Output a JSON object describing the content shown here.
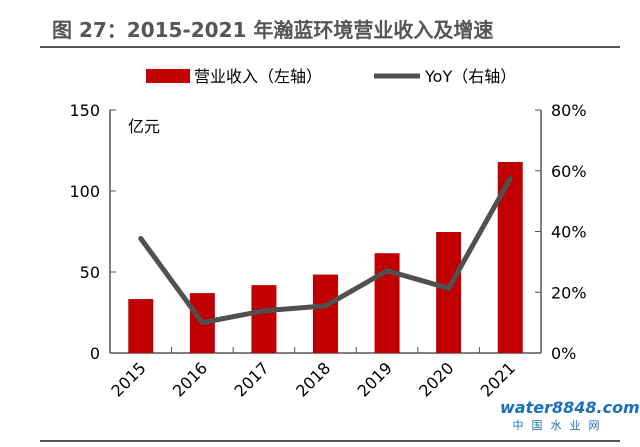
{
  "chart_data": {
    "type": "bar+line",
    "title": "图 27：2015-2021 年瀚蓝环境营业收入及增速",
    "categories": [
      "2015",
      "2016",
      "2017",
      "2018",
      "2019",
      "2020",
      "2021"
    ],
    "series": [
      {
        "name": "营业收入（左轴）",
        "type": "bar",
        "axis": "left",
        "color": "#C00000",
        "values": [
          33.3,
          37.0,
          41.9,
          48.4,
          61.6,
          74.7,
          117.9
        ]
      },
      {
        "name": "YoY（右轴）",
        "type": "line",
        "axis": "right",
        "color": "#505050",
        "values": [
          37.7,
          10.0,
          13.9,
          15.5,
          27.1,
          21.3,
          57.4
        ]
      }
    ],
    "ylabel": "亿元",
    "ylim": [
      0,
      150
    ],
    "yticks": [
      "0",
      "50",
      "100",
      "150"
    ],
    "y2lim": [
      0,
      80
    ],
    "y2ticks": [
      "0%",
      "20%",
      "40%",
      "60%",
      "80%"
    ],
    "grid": false,
    "legend": "top"
  },
  "watermark": {
    "brand": "water8848.com",
    "sub": "中国水业网"
  }
}
